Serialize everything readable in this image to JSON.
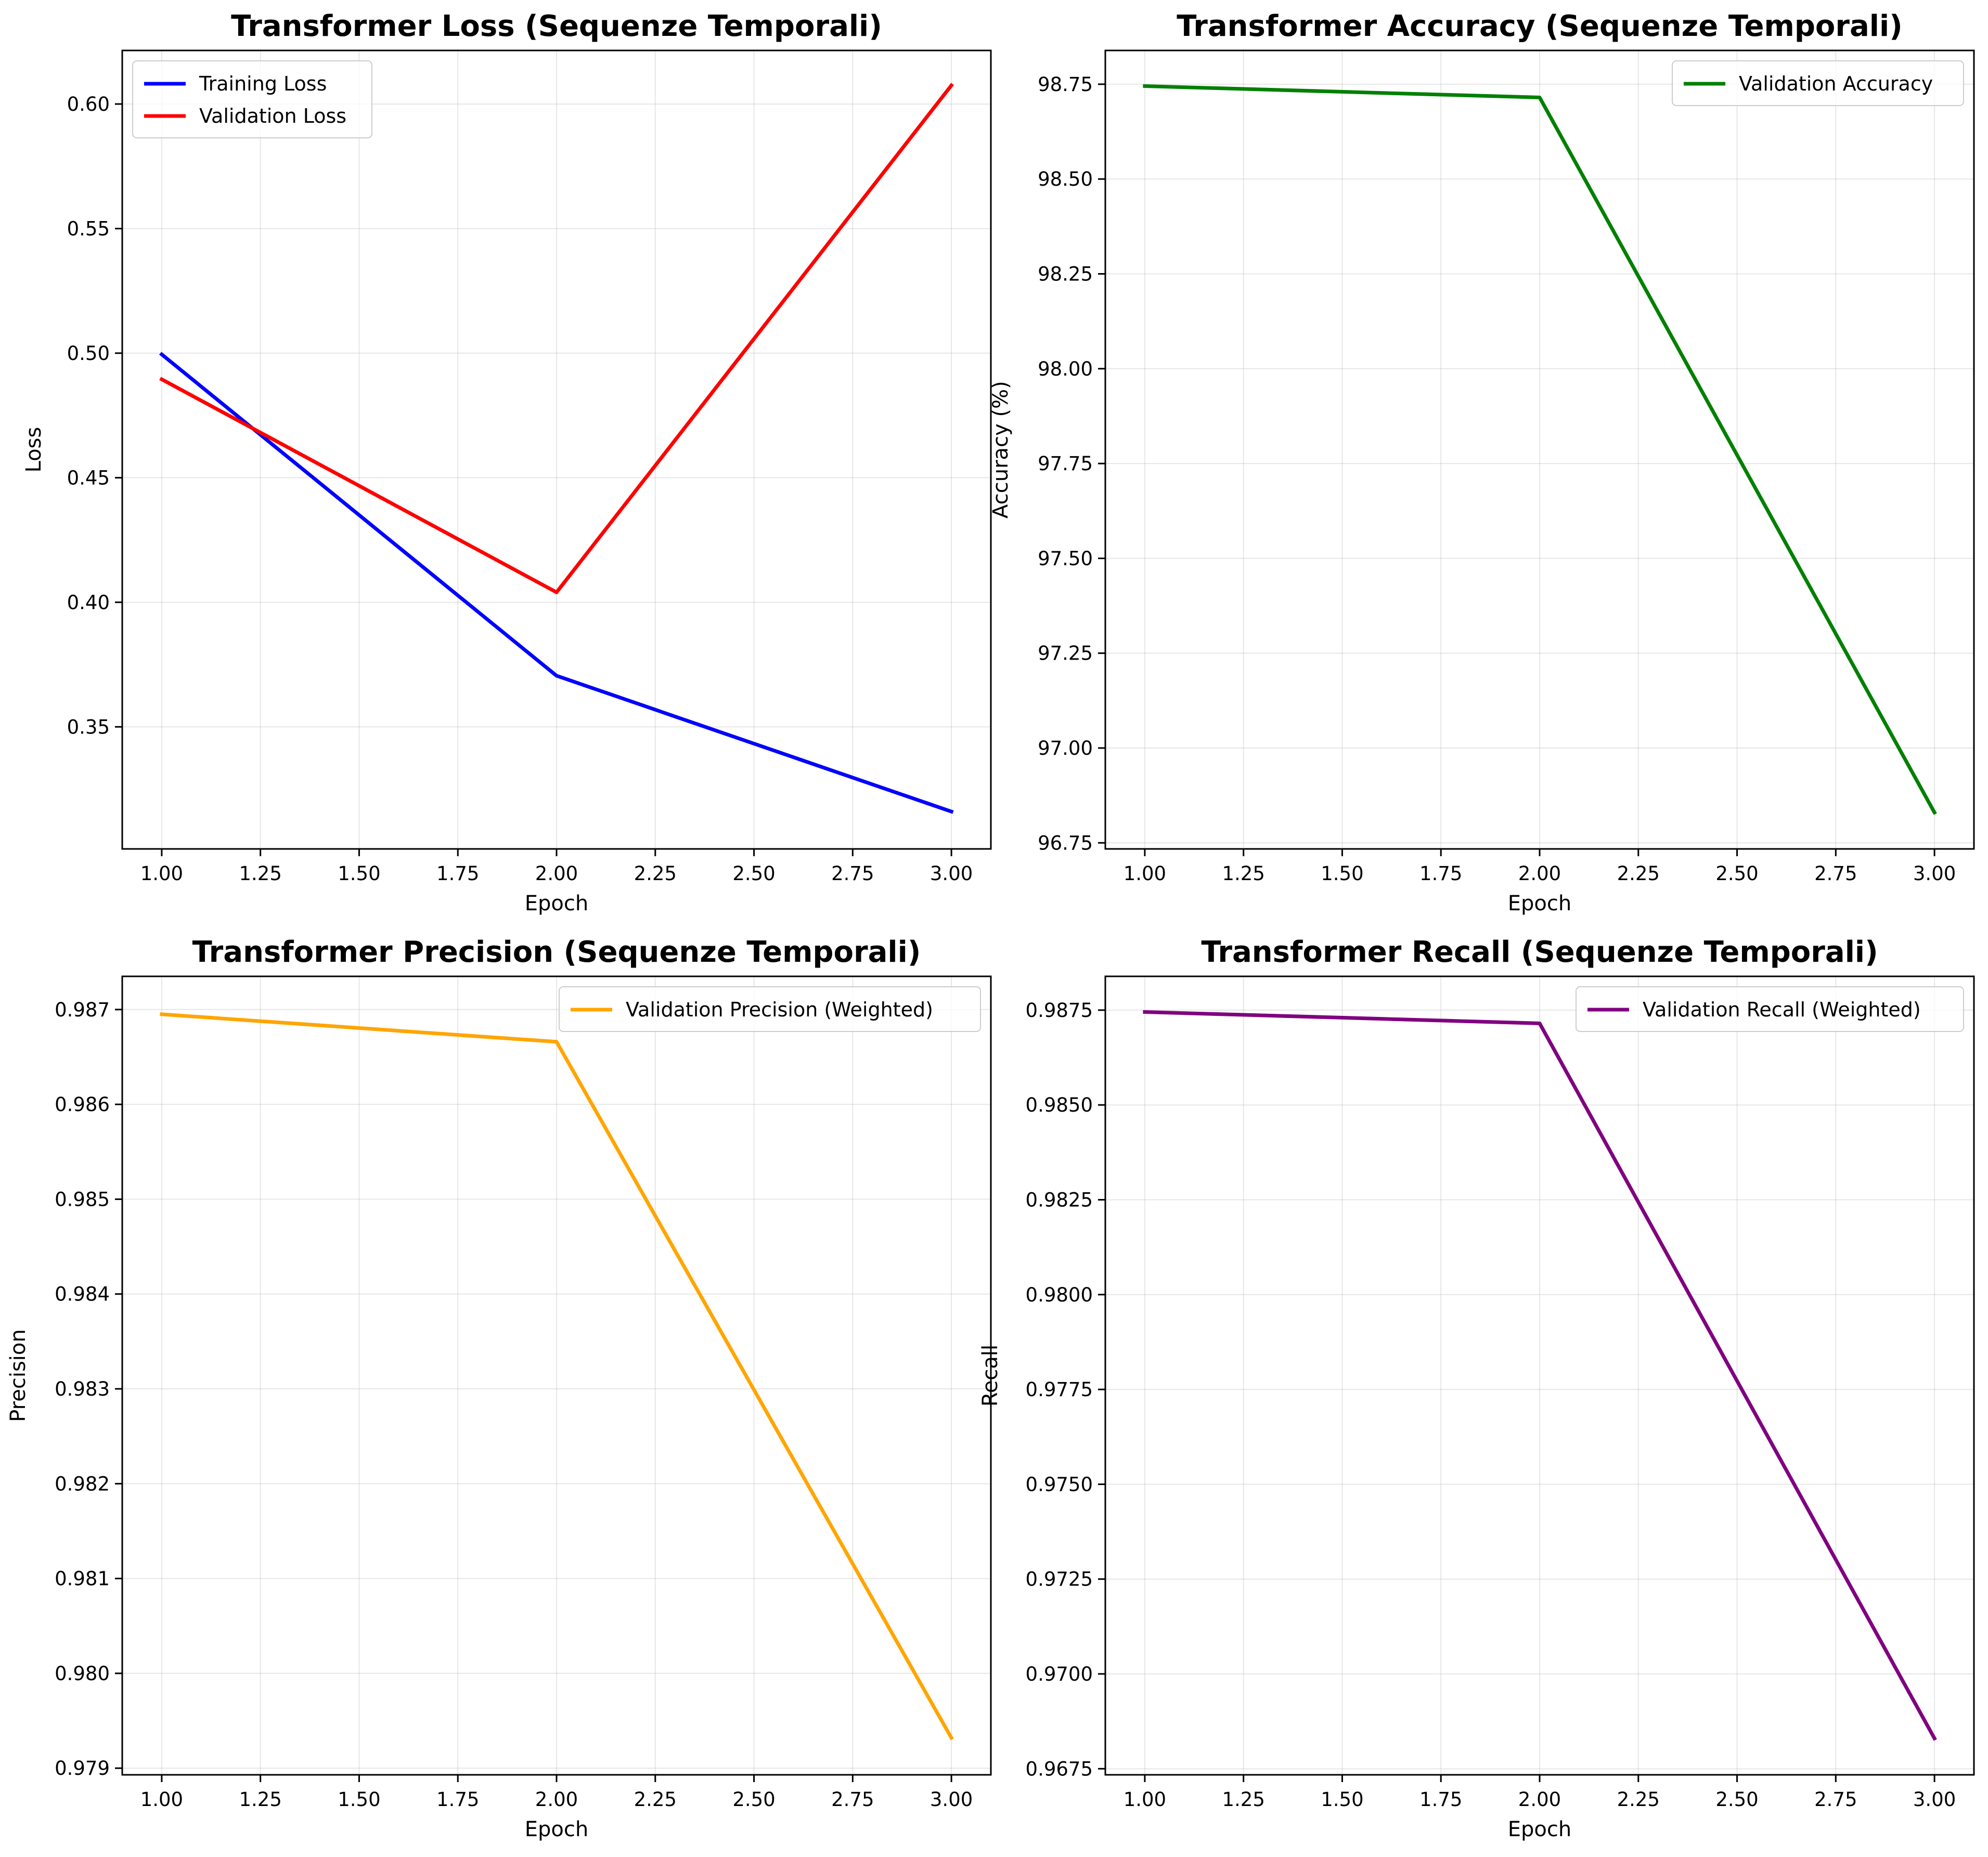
{
  "chart_data": [
    {
      "type": "line",
      "title": "Transformer Loss (Sequenze Temporali)",
      "xlabel": "Epoch",
      "ylabel": "Loss",
      "xlim": [
        0.9,
        3.1
      ],
      "ylim": [
        0.301,
        0.6215
      ],
      "xticks": [
        1.0,
        1.25,
        1.5,
        1.75,
        2.0,
        2.25,
        2.5,
        2.75,
        3.0
      ],
      "xtick_labels": [
        "1.00",
        "1.25",
        "1.50",
        "1.75",
        "2.00",
        "2.25",
        "2.50",
        "2.75",
        "3.00"
      ],
      "yticks": [
        0.35,
        0.4,
        0.45,
        0.5,
        0.55,
        0.6
      ],
      "ytick_labels": [
        "0.35",
        "0.40",
        "0.45",
        "0.50",
        "0.55",
        "0.60"
      ],
      "grid": true,
      "legend": "upper-left",
      "x": [
        1,
        2,
        3
      ],
      "series": [
        {
          "name": "Training Loss",
          "color": "#0000ff",
          "values": [
            0.4995,
            0.3705,
            0.316
          ]
        },
        {
          "name": "Validation Loss",
          "color": "#ff0000",
          "values": [
            0.4895,
            0.404,
            0.6075
          ]
        }
      ]
    },
    {
      "type": "line",
      "title": "Transformer Accuracy (Sequenze Temporali)",
      "xlabel": "Epoch",
      "ylabel": "Accuracy (%)",
      "xlim": [
        0.9,
        3.1
      ],
      "ylim": [
        96.734,
        98.839
      ],
      "xticks": [
        1.0,
        1.25,
        1.5,
        1.75,
        2.0,
        2.25,
        2.5,
        2.75,
        3.0
      ],
      "xtick_labels": [
        "1.00",
        "1.25",
        "1.50",
        "1.75",
        "2.00",
        "2.25",
        "2.50",
        "2.75",
        "3.00"
      ],
      "yticks": [
        96.75,
        97.0,
        97.25,
        97.5,
        97.75,
        98.0,
        98.25,
        98.5,
        98.75
      ],
      "ytick_labels": [
        "96.75",
        "97.00",
        "97.25",
        "97.50",
        "97.75",
        "98.00",
        "98.25",
        "98.50",
        "98.75"
      ],
      "grid": true,
      "legend": "upper-right",
      "x": [
        1,
        2,
        3
      ],
      "series": [
        {
          "name": "Validation Accuracy",
          "color": "#008000",
          "values": [
            98.745,
            98.715,
            96.83
          ]
        }
      ]
    },
    {
      "type": "line",
      "title": "Transformer Precision (Sequenze Temporali)",
      "xlabel": "Epoch",
      "ylabel": "Precision",
      "xlim": [
        0.9,
        3.1
      ],
      "ylim": [
        0.97893,
        0.98735
      ],
      "xticks": [
        1.0,
        1.25,
        1.5,
        1.75,
        2.0,
        2.25,
        2.5,
        2.75,
        3.0
      ],
      "xtick_labels": [
        "1.00",
        "1.25",
        "1.50",
        "1.75",
        "2.00",
        "2.25",
        "2.50",
        "2.75",
        "3.00"
      ],
      "yticks": [
        0.979,
        0.98,
        0.981,
        0.982,
        0.983,
        0.984,
        0.985,
        0.986,
        0.987
      ],
      "ytick_labels": [
        "0.979",
        "0.980",
        "0.981",
        "0.982",
        "0.983",
        "0.984",
        "0.985",
        "0.986",
        "0.987"
      ],
      "grid": true,
      "legend": "upper-right",
      "x": [
        1,
        2,
        3
      ],
      "series": [
        {
          "name": "Validation Precision (Weighted)",
          "color": "#ffa500",
          "values": [
            0.98695,
            0.98666,
            0.97932
          ]
        }
      ]
    },
    {
      "type": "line",
      "title": "Transformer Recall (Sequenze Temporali)",
      "xlabel": "Epoch",
      "ylabel": "Recall",
      "xlim": [
        0.9,
        3.1
      ],
      "ylim": [
        0.96734,
        0.98839
      ],
      "xticks": [
        1.0,
        1.25,
        1.5,
        1.75,
        2.0,
        2.25,
        2.5,
        2.75,
        3.0
      ],
      "xtick_labels": [
        "1.00",
        "1.25",
        "1.50",
        "1.75",
        "2.00",
        "2.25",
        "2.50",
        "2.75",
        "3.00"
      ],
      "yticks": [
        0.9675,
        0.97,
        0.9725,
        0.975,
        0.9775,
        0.98,
        0.9825,
        0.985,
        0.9875
      ],
      "ytick_labels": [
        "0.9675",
        "0.9700",
        "0.9725",
        "0.9750",
        "0.9775",
        "0.9800",
        "0.9825",
        "0.9850",
        "0.9875"
      ],
      "grid": true,
      "legend": "upper-right",
      "x": [
        1,
        2,
        3
      ],
      "series": [
        {
          "name": "Validation Recall (Weighted)",
          "color": "#800080",
          "values": [
            0.98745,
            0.98715,
            0.9683
          ]
        }
      ]
    }
  ]
}
